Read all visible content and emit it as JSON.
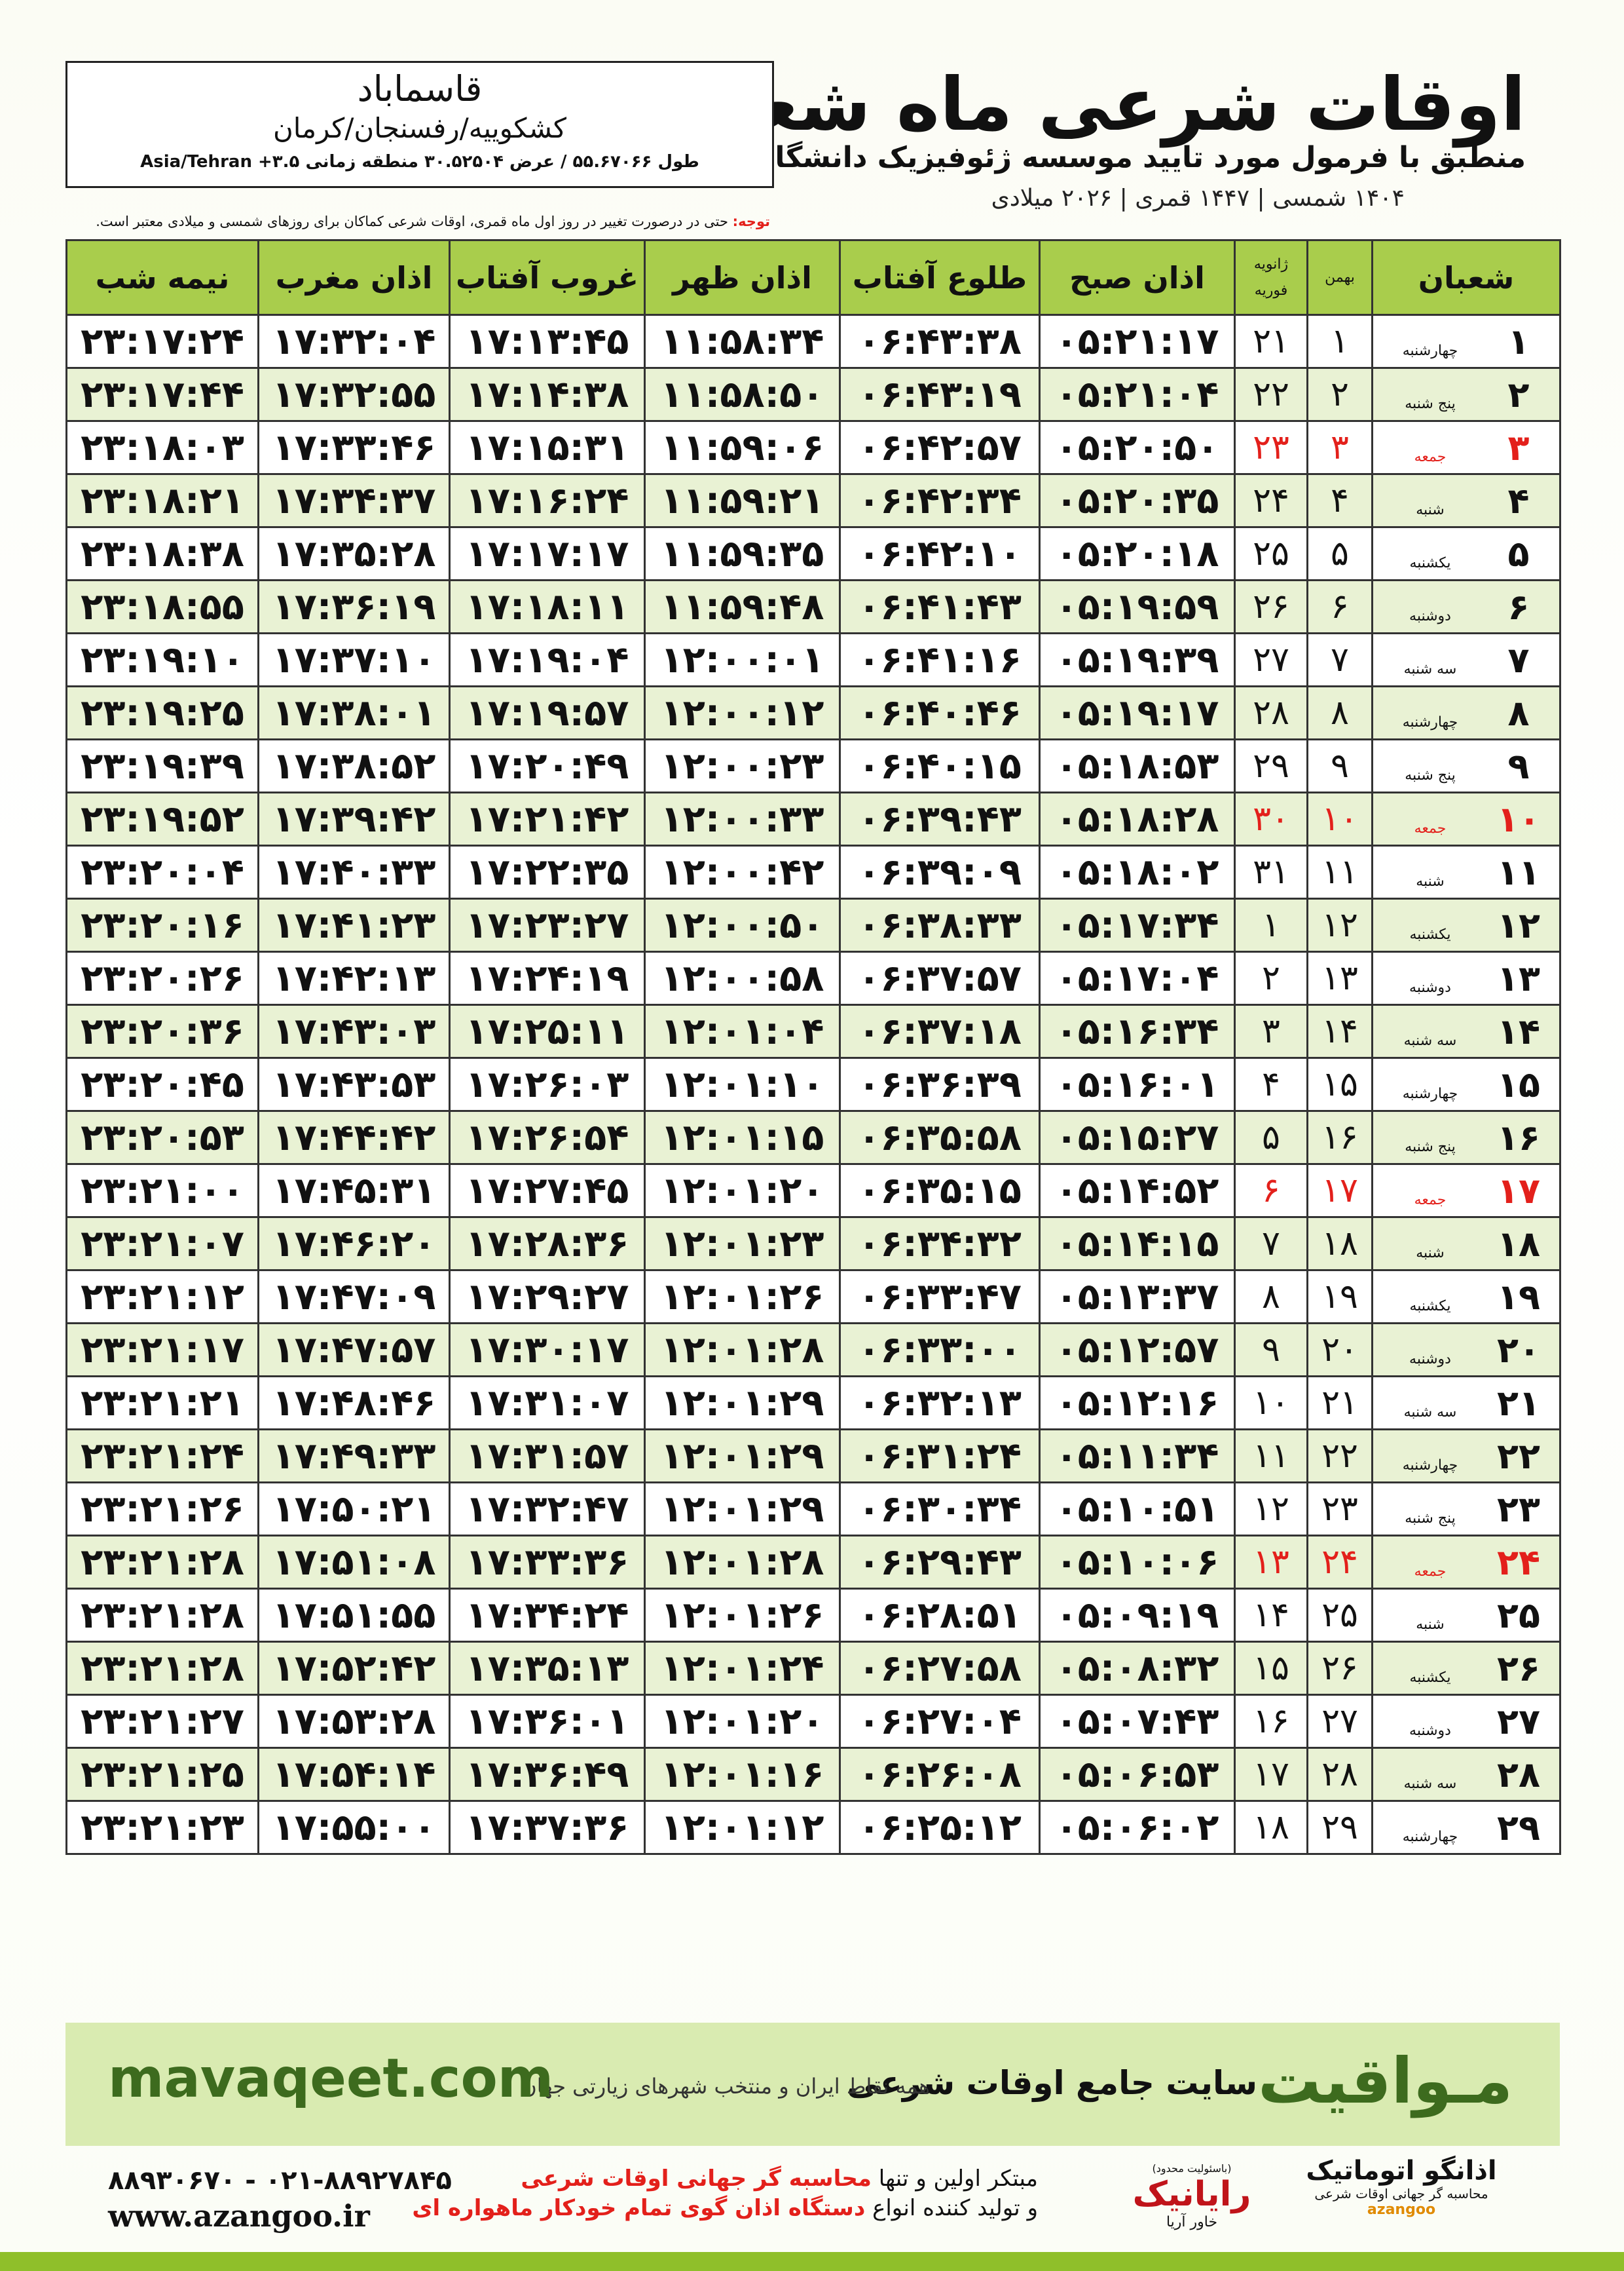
{
  "header": {
    "title": "اوقات شرعی ماه شعبان",
    "subtitle": "منطبق با فرمول مورد تایید موسسه ژئوفیزیک دانشگاه تهران",
    "dates": "۱۴۰۴ شمسی | ۱۴۴۷ قمری | ۲۰۲۶ میلادی"
  },
  "location": {
    "name": "قاسماباد",
    "region": "کشکوییه/رفسنجان/کرمان",
    "coords": "طول ۵۵.۶۷۰۶۶ / عرض ۳۰.۵۲۵۰۴ منطقه زمانی ۳.۵+ Asia/Tehran"
  },
  "note": {
    "label": "توجه:",
    "text": "حتی در درصورت تغییر در روز اول ماه قمری، اوقات شرعی کماکان برای روزهای شمسی و میلادی معتبر است."
  },
  "table": {
    "columns": [
      "شعبان",
      "بهمن",
      [
        "ژانویه",
        "فوریه"
      ],
      "اذان صبح",
      "طلوع آفتاب",
      "اذان ظهر",
      "غروب آفتاب",
      "اذان مغرب",
      "نیمه شب"
    ],
    "rows": [
      {
        "day": "۱",
        "weekday": "چهارشنبه",
        "bahman": "۱",
        "gregorian": "۲۱",
        "times": [
          "۰۵:۲۱:۱۷",
          "۰۶:۴۳:۳۸",
          "۱۱:۵۸:۳۴",
          "۱۷:۱۳:۴۵",
          "۱۷:۳۲:۰۴",
          "۲۳:۱۷:۲۴"
        ]
      },
      {
        "day": "۲",
        "weekday": "پنج شنبه",
        "bahman": "۲",
        "gregorian": "۲۲",
        "times": [
          "۰۵:۲۱:۰۴",
          "۰۶:۴۳:۱۹",
          "۱۱:۵۸:۵۰",
          "۱۷:۱۴:۳۸",
          "۱۷:۳۲:۵۵",
          "۲۳:۱۷:۴۴"
        ]
      },
      {
        "day": "۳",
        "weekday": "جمعه",
        "bahman": "۳",
        "gregorian": "۲۳",
        "times": [
          "۰۵:۲۰:۵۰",
          "۰۶:۴۲:۵۷",
          "۱۱:۵۹:۰۶",
          "۱۷:۱۵:۳۱",
          "۱۷:۳۳:۴۶",
          "۲۳:۱۸:۰۳"
        ],
        "color": "#e3201b"
      },
      {
        "day": "۴",
        "weekday": "شنبه",
        "bahman": "۴",
        "gregorian": "۲۴",
        "times": [
          "۰۵:۲۰:۳۵",
          "۰۶:۴۲:۳۴",
          "۱۱:۵۹:۲۱",
          "۱۷:۱۶:۲۴",
          "۱۷:۳۴:۳۷",
          "۲۳:۱۸:۲۱"
        ]
      },
      {
        "day": "۵",
        "weekday": "یکشنبه",
        "bahman": "۵",
        "gregorian": "۲۵",
        "times": [
          "۰۵:۲۰:۱۸",
          "۰۶:۴۲:۱۰",
          "۱۱:۵۹:۳۵",
          "۱۷:۱۷:۱۷",
          "۱۷:۳۵:۲۸",
          "۲۳:۱۸:۳۸"
        ]
      },
      {
        "day": "۶",
        "weekday": "دوشنبه",
        "bahman": "۶",
        "gregorian": "۲۶",
        "times": [
          "۰۵:۱۹:۵۹",
          "۰۶:۴۱:۴۳",
          "۱۱:۵۹:۴۸",
          "۱۷:۱۸:۱۱",
          "۱۷:۳۶:۱۹",
          "۲۳:۱۸:۵۵"
        ]
      },
      {
        "day": "۷",
        "weekday": "سه شنبه",
        "bahman": "۷",
        "gregorian": "۲۷",
        "times": [
          "۰۵:۱۹:۳۹",
          "۰۶:۴۱:۱۶",
          "۱۲:۰۰:۰۱",
          "۱۷:۱۹:۰۴",
          "۱۷:۳۷:۱۰",
          "۲۳:۱۹:۱۰"
        ]
      },
      {
        "day": "۸",
        "weekday": "چهارشنبه",
        "bahman": "۸",
        "gregorian": "۲۸",
        "times": [
          "۰۵:۱۹:۱۷",
          "۰۶:۴۰:۴۶",
          "۱۲:۰۰:۱۲",
          "۱۷:۱۹:۵۷",
          "۱۷:۳۸:۰۱",
          "۲۳:۱۹:۲۵"
        ]
      },
      {
        "day": "۹",
        "weekday": "پنج شنبه",
        "bahman": "۹",
        "gregorian": "۲۹",
        "times": [
          "۰۵:۱۸:۵۳",
          "۰۶:۴۰:۱۵",
          "۱۲:۰۰:۲۳",
          "۱۷:۲۰:۴۹",
          "۱۷:۳۸:۵۲",
          "۲۳:۱۹:۳۹"
        ]
      },
      {
        "day": "۱۰",
        "weekday": "جمعه",
        "bahman": "۱۰",
        "gregorian": "۳۰",
        "times": [
          "۰۵:۱۸:۲۸",
          "۰۶:۳۹:۴۳",
          "۱۲:۰۰:۳۳",
          "۱۷:۲۱:۴۲",
          "۱۷:۳۹:۴۲",
          "۲۳:۱۹:۵۲"
        ],
        "color": "#e3201b"
      },
      {
        "day": "۱۱",
        "weekday": "شنبه",
        "bahman": "۱۱",
        "gregorian": "۳۱",
        "times": [
          "۰۵:۱۸:۰۲",
          "۰۶:۳۹:۰۹",
          "۱۲:۰۰:۴۲",
          "۱۷:۲۲:۳۵",
          "۱۷:۴۰:۳۳",
          "۲۳:۲۰:۰۴"
        ]
      },
      {
        "day": "۱۲",
        "weekday": "یکشنبه",
        "bahman": "۱۲",
        "gregorian": "۱",
        "times": [
          "۰۵:۱۷:۳۴",
          "۰۶:۳۸:۳۳",
          "۱۲:۰۰:۵۰",
          "۱۷:۲۳:۲۷",
          "۱۷:۴۱:۲۳",
          "۲۳:۲۰:۱۶"
        ]
      },
      {
        "day": "۱۳",
        "weekday": "دوشنبه",
        "bahman": "۱۳",
        "gregorian": "۲",
        "times": [
          "۰۵:۱۷:۰۴",
          "۰۶:۳۷:۵۷",
          "۱۲:۰۰:۵۸",
          "۱۷:۲۴:۱۹",
          "۱۷:۴۲:۱۳",
          "۲۳:۲۰:۲۶"
        ]
      },
      {
        "day": "۱۴",
        "weekday": "سه شنبه",
        "bahman": "۱۴",
        "gregorian": "۳",
        "times": [
          "۰۵:۱۶:۳۴",
          "۰۶:۳۷:۱۸",
          "۱۲:۰۱:۰۴",
          "۱۷:۲۵:۱۱",
          "۱۷:۴۳:۰۳",
          "۲۳:۲۰:۳۶"
        ]
      },
      {
        "day": "۱۵",
        "weekday": "چهارشنبه",
        "bahman": "۱۵",
        "gregorian": "۴",
        "times": [
          "۰۵:۱۶:۰۱",
          "۰۶:۳۶:۳۹",
          "۱۲:۰۱:۱۰",
          "۱۷:۲۶:۰۳",
          "۱۷:۴۳:۵۳",
          "۲۳:۲۰:۴۵"
        ]
      },
      {
        "day": "۱۶",
        "weekday": "پنج شنبه",
        "bahman": "۱۶",
        "gregorian": "۵",
        "times": [
          "۰۵:۱۵:۲۷",
          "۰۶:۳۵:۵۸",
          "۱۲:۰۱:۱۵",
          "۱۷:۲۶:۵۴",
          "۱۷:۴۴:۴۲",
          "۲۳:۲۰:۵۳"
        ]
      },
      {
        "day": "۱۷",
        "weekday": "جمعه",
        "bahman": "۱۷",
        "gregorian": "۶",
        "times": [
          "۰۵:۱۴:۵۲",
          "۰۶:۳۵:۱۵",
          "۱۲:۰۱:۲۰",
          "۱۷:۲۷:۴۵",
          "۱۷:۴۵:۳۱",
          "۲۳:۲۱:۰۰"
        ],
        "color": "#e3201b"
      },
      {
        "day": "۱۸",
        "weekday": "شنبه",
        "bahman": "۱۸",
        "gregorian": "۷",
        "times": [
          "۰۵:۱۴:۱۵",
          "۰۶:۳۴:۳۲",
          "۱۲:۰۱:۲۳",
          "۱۷:۲۸:۳۶",
          "۱۷:۴۶:۲۰",
          "۲۳:۲۱:۰۷"
        ]
      },
      {
        "day": "۱۹",
        "weekday": "یکشنبه",
        "bahman": "۱۹",
        "gregorian": "۸",
        "times": [
          "۰۵:۱۳:۳۷",
          "۰۶:۳۳:۴۷",
          "۱۲:۰۱:۲۶",
          "۱۷:۲۹:۲۷",
          "۱۷:۴۷:۰۹",
          "۲۳:۲۱:۱۲"
        ]
      },
      {
        "day": "۲۰",
        "weekday": "دوشنبه",
        "bahman": "۲۰",
        "gregorian": "۹",
        "times": [
          "۰۵:۱۲:۵۷",
          "۰۶:۳۳:۰۰",
          "۱۲:۰۱:۲۸",
          "۱۷:۳۰:۱۷",
          "۱۷:۴۷:۵۷",
          "۲۳:۲۱:۱۷"
        ]
      },
      {
        "day": "۲۱",
        "weekday": "سه شنبه",
        "bahman": "۲۱",
        "gregorian": "۱۰",
        "times": [
          "۰۵:۱۲:۱۶",
          "۰۶:۳۲:۱۳",
          "۱۲:۰۱:۲۹",
          "۱۷:۳۱:۰۷",
          "۱۷:۴۸:۴۶",
          "۲۳:۲۱:۲۱"
        ]
      },
      {
        "day": "۲۲",
        "weekday": "چهارشنبه",
        "bahman": "۲۲",
        "gregorian": "۱۱",
        "times": [
          "۰۵:۱۱:۳۴",
          "۰۶:۳۱:۲۴",
          "۱۲:۰۱:۲۹",
          "۱۷:۳۱:۵۷",
          "۱۷:۴۹:۳۳",
          "۲۳:۲۱:۲۴"
        ]
      },
      {
        "day": "۲۳",
        "weekday": "پنج شنبه",
        "bahman": "۲۳",
        "gregorian": "۱۲",
        "times": [
          "۰۵:۱۰:۵۱",
          "۰۶:۳۰:۳۴",
          "۱۲:۰۱:۲۹",
          "۱۷:۳۲:۴۷",
          "۱۷:۵۰:۲۱",
          "۲۳:۲۱:۲۶"
        ]
      },
      {
        "day": "۲۴",
        "weekday": "جمعه",
        "bahman": "۲۴",
        "gregorian": "۱۳",
        "times": [
          "۰۵:۱۰:۰۶",
          "۰۶:۲۹:۴۳",
          "۱۲:۰۱:۲۸",
          "۱۷:۳۳:۳۶",
          "۱۷:۵۱:۰۸",
          "۲۳:۲۱:۲۸"
        ],
        "color": "#e3201b"
      },
      {
        "day": "۲۵",
        "weekday": "شنبه",
        "bahman": "۲۵",
        "gregorian": "۱۴",
        "times": [
          "۰۵:۰۹:۱۹",
          "۰۶:۲۸:۵۱",
          "۱۲:۰۱:۲۶",
          "۱۷:۳۴:۲۴",
          "۱۷:۵۱:۵۵",
          "۲۳:۲۱:۲۸"
        ]
      },
      {
        "day": "۲۶",
        "weekday": "یکشنبه",
        "bahman": "۲۶",
        "gregorian": "۱۵",
        "times": [
          "۰۵:۰۸:۳۲",
          "۰۶:۲۷:۵۸",
          "۱۲:۰۱:۲۴",
          "۱۷:۳۵:۱۳",
          "۱۷:۵۲:۴۲",
          "۲۳:۲۱:۲۸"
        ]
      },
      {
        "day": "۲۷",
        "weekday": "دوشنبه",
        "bahman": "۲۷",
        "gregorian": "۱۶",
        "times": [
          "۰۵:۰۷:۴۳",
          "۰۶:۲۷:۰۴",
          "۱۲:۰۱:۲۰",
          "۱۷:۳۶:۰۱",
          "۱۷:۵۳:۲۸",
          "۲۳:۲۱:۲۷"
        ]
      },
      {
        "day": "۲۸",
        "weekday": "سه شنبه",
        "bahman": "۲۸",
        "gregorian": "۱۷",
        "times": [
          "۰۵:۰۶:۵۳",
          "۰۶:۲۶:۰۸",
          "۱۲:۰۱:۱۶",
          "۱۷:۳۶:۴۹",
          "۱۷:۵۴:۱۴",
          "۲۳:۲۱:۲۵"
        ]
      },
      {
        "day": "۲۹",
        "weekday": "چهارشنبه",
        "bahman": "۲۹",
        "gregorian": "۱۸",
        "times": [
          "۰۵:۰۶:۰۲",
          "۰۶:۲۵:۱۲",
          "۱۲:۰۱:۱۲",
          "۱۷:۳۷:۳۶",
          "۱۷:۵۵:۰۰",
          "۲۳:۲۱:۲۳"
        ]
      }
    ]
  },
  "footer": {
    "brand": "مـواقیت",
    "site_title": "سایت جامع اوقات شرعی",
    "site_desc": "همه نقاط ایران و منتخب شهرهای زیارتی جهان",
    "url": "mavaqeet.com"
  },
  "contact": {
    "phones": "۰۲۱-۸۸۹۲۷۸۴۵ - ۸۸۹۳۰۶۷۰",
    "web": "www.azangoo.ir",
    "line1_a": "مبتکر اولین و تنها",
    "line1_b": "محاسبه گر جهانی اوقات شرعی",
    "line2_a": "و تولید کننده انواع",
    "line2_b": "دستگاه اذان گوی تمام خودکار ماهواره ای",
    "logo1": "رایانیک",
    "logo1_sub": "خاور آریا",
    "logo1_note": "(باسئولیت محدود)",
    "logo2": "اذانگو اتوماتیک",
    "logo2_sub": "محاسبه گر جهانی اوقات شرعی",
    "logo2_mark": "azangoo"
  }
}
